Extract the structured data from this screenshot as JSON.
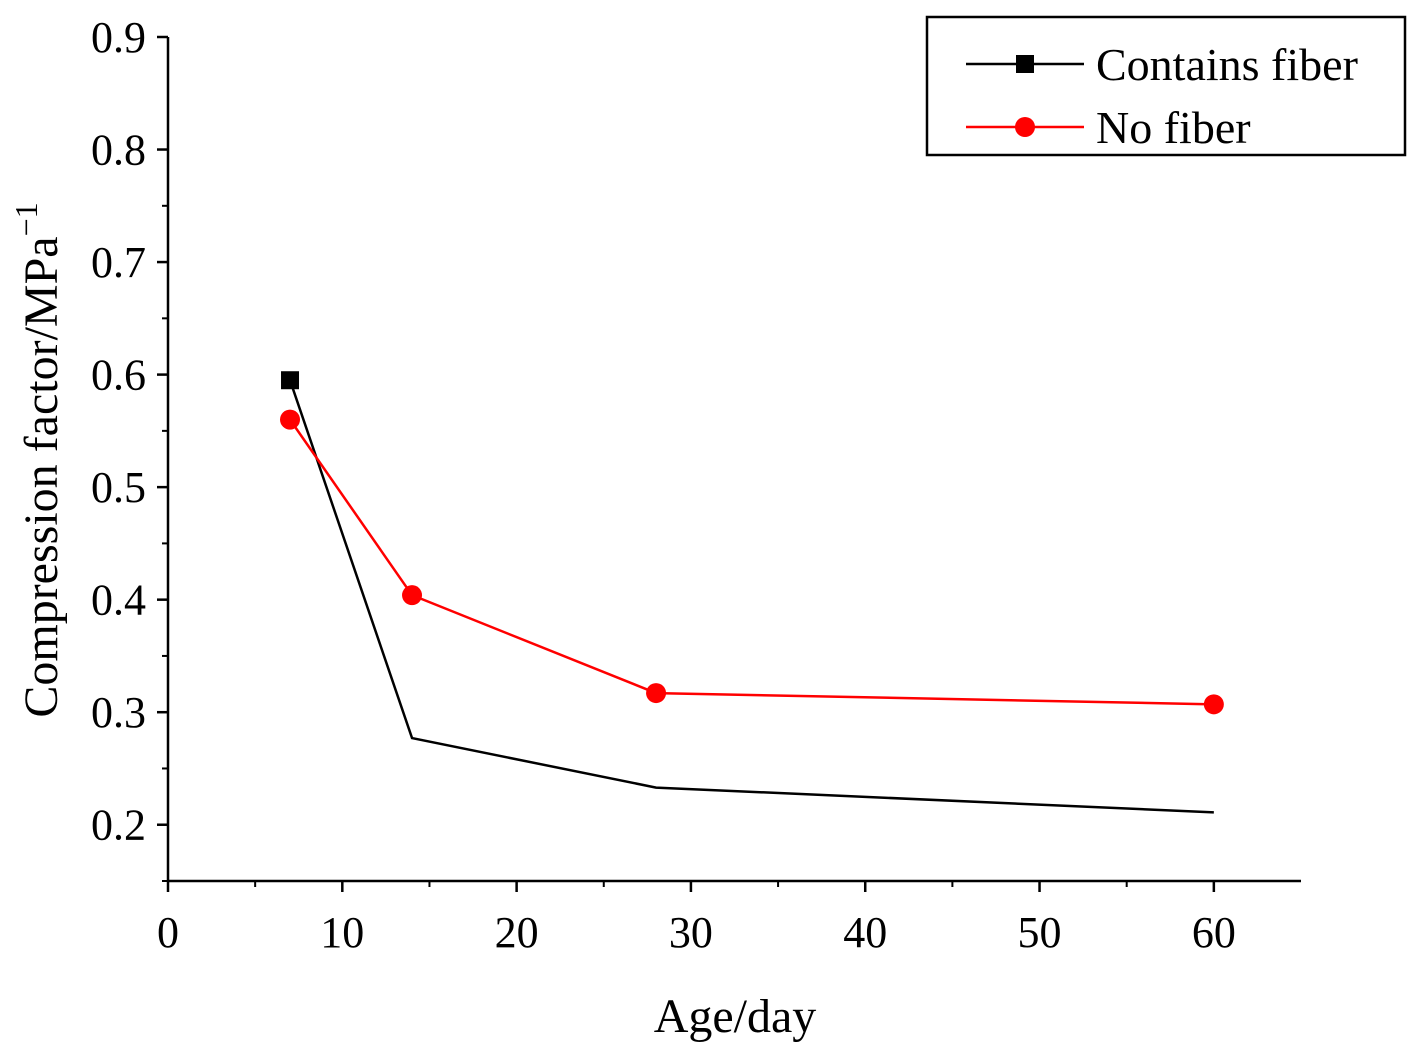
{
  "chart_data": {
    "type": "line",
    "title": "",
    "xlabel": "Age/day",
    "ylabel_main": "Compression factor/MPa",
    "ylabel_superscript": "−1",
    "xlim": [
      0,
      65
    ],
    "ylim": [
      0.15,
      0.9
    ],
    "xticks": [
      0,
      10,
      20,
      30,
      40,
      50,
      60
    ],
    "xtick_labels": [
      "0",
      "10",
      "20",
      "30",
      "40",
      "50",
      "60"
    ],
    "yticks": [
      0.2,
      0.3,
      0.4,
      0.5,
      0.6,
      0.7,
      0.8,
      0.9
    ],
    "ytick_labels": [
      "0.2",
      "0.3",
      "0.4",
      "0.5",
      "0.6",
      "0.7",
      "0.8",
      "0.9"
    ],
    "grid": false,
    "legend_position": "top-right",
    "series": [
      {
        "name": "Contains fiber",
        "color": "#000000",
        "marker": "square",
        "x": [
          7,
          14,
          28,
          60
        ],
        "y": [
          0.595,
          0.277,
          0.233,
          0.211
        ]
      },
      {
        "name": "No fiber",
        "color": "#ff0000",
        "marker": "circle",
        "x": [
          7,
          14,
          28,
          60
        ],
        "y": [
          0.56,
          0.404,
          0.317,
          0.307
        ]
      }
    ]
  }
}
